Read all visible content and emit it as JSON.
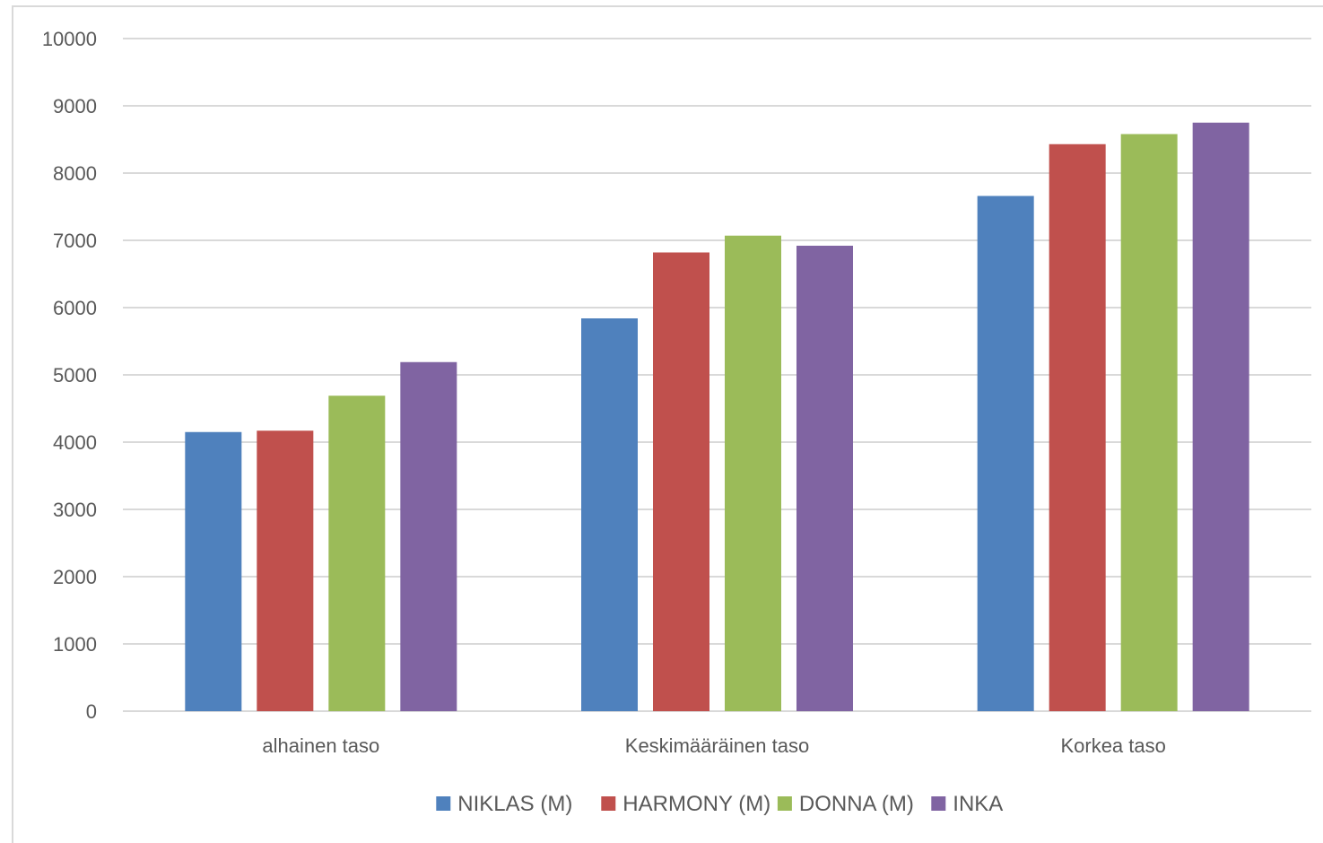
{
  "chart_data": {
    "type": "bar",
    "title": "",
    "xlabel": "",
    "ylabel": "",
    "categories": [
      "alhainen taso",
      "Keskimääräinen taso",
      "Korkea taso"
    ],
    "series": [
      {
        "name": "NIKLAS (M)",
        "color": "#4f81bd",
        "values": [
          4150,
          5840,
          7660
        ]
      },
      {
        "name": "HARMONY (M)",
        "color": "#c0504d",
        "values": [
          4170,
          6820,
          8430
        ]
      },
      {
        "name": "DONNA (M)",
        "color": "#9bbb59",
        "values": [
          4690,
          7070,
          8580
        ]
      },
      {
        "name": "INKA",
        "color": "#8064a2",
        "values": [
          5190,
          6920,
          8750
        ]
      }
    ],
    "ylim": [
      0,
      10000
    ],
    "yticks": [
      "0",
      "1000",
      "2000",
      "3000",
      "4000",
      "5000",
      "6000",
      "7000",
      "8000",
      "9000",
      "10000"
    ],
    "grid": true,
    "legend": "bottom"
  }
}
